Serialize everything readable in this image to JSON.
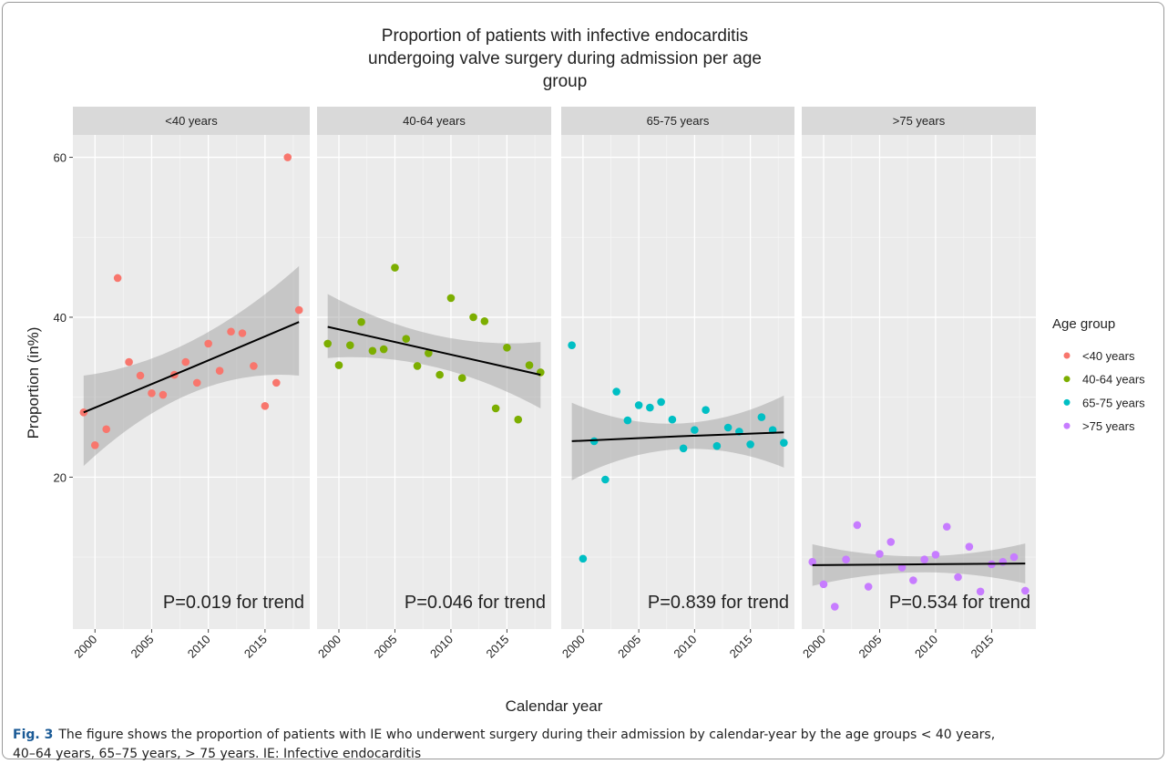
{
  "chart_data": {
    "type": "scatter",
    "title": [
      "Proportion of patients with infective endocarditis",
      "undergoing valve surgery during admission per age",
      "group"
    ],
    "x_label": "Calendar year",
    "y_label": "Proportion (in%)",
    "legend_title": "Age group",
    "legend_position": "right",
    "grid": true,
    "x": [
      1999,
      2000,
      2001,
      2002,
      2003,
      2004,
      2005,
      2006,
      2007,
      2008,
      2009,
      2010,
      2011,
      2012,
      2013,
      2014,
      2015,
      2016,
      2017,
      2018
    ],
    "xlim": [
      1998.05,
      2018.95
    ],
    "xticks": [
      2000,
      2005,
      2010,
      2015
    ],
    "ylim": [
      1,
      62.8
    ],
    "yticks": [
      20,
      40,
      60
    ],
    "fit_x": [
      1999,
      2008.5,
      2018
    ],
    "series": [
      {
        "name": "<40 years",
        "color": "#F8766D",
        "annotation": "P=0.019 for trend",
        "values": [
          28.1,
          24.0,
          26.0,
          44.9,
          34.4,
          32.7,
          30.5,
          30.3,
          32.8,
          34.4,
          31.8,
          36.7,
          33.3,
          38.2,
          38.0,
          33.9,
          28.9,
          31.8,
          60.0,
          40.9
        ],
        "fit": {
          "values": [
            28.1,
            33.7,
            39.4
          ],
          "lower": [
            21.4,
            30.5,
            32.7
          ],
          "upper": [
            32.7,
            37.0,
            46.4
          ]
        }
      },
      {
        "name": "40-64 years",
        "color": "#7CAE00",
        "annotation": "P=0.046 for trend",
        "values": [
          36.7,
          34.0,
          36.5,
          39.4,
          35.8,
          36.0,
          46.2,
          37.3,
          33.9,
          35.5,
          32.8,
          42.4,
          32.4,
          40.0,
          39.5,
          28.6,
          36.2,
          27.2,
          34.0,
          33.1
        ],
        "fit": {
          "values": [
            38.8,
            35.8,
            32.8
          ],
          "lower": [
            34.9,
            33.8,
            28.6
          ],
          "upper": [
            42.9,
            37.8,
            36.9
          ]
        }
      },
      {
        "name": "65-75 years",
        "color": "#00BFC4",
        "annotation": "P=0.839 for trend",
        "values": [
          36.5,
          9.8,
          24.5,
          19.7,
          30.7,
          27.1,
          29.0,
          28.7,
          29.4,
          27.2,
          23.6,
          25.9,
          28.4,
          23.9,
          26.2,
          25.7,
          24.1,
          27.5,
          25.9,
          24.3
        ],
        "fit": {
          "values": [
            24.5,
            25.1,
            25.6
          ],
          "lower": [
            19.6,
            23.5,
            21.2
          ],
          "upper": [
            29.3,
            26.7,
            30.2
          ]
        }
      },
      {
        "name": ">75 years",
        "color": "#C77CFF",
        "annotation": "P=0.534 for trend",
        "values": [
          9.4,
          6.6,
          3.8,
          9.7,
          14.0,
          6.3,
          10.4,
          11.9,
          8.7,
          7.1,
          9.7,
          10.3,
          13.8,
          7.5,
          11.3,
          5.7,
          9.1,
          9.4,
          10.0,
          5.8
        ],
        "fit": {
          "values": [
            9.0,
            9.1,
            9.2
          ],
          "lower": [
            6.4,
            8.1,
            6.7
          ],
          "upper": [
            11.6,
            10.1,
            11.7
          ]
        }
      }
    ]
  },
  "caption": {
    "label": "Fig. 3",
    "text": "The figure shows the proportion of patients with IE who underwent surgery during their admission by calendar-year by the age groups < 40 years, 40–64 years, 65–75 years, > 75 years. IE: Infective endocarditis"
  }
}
